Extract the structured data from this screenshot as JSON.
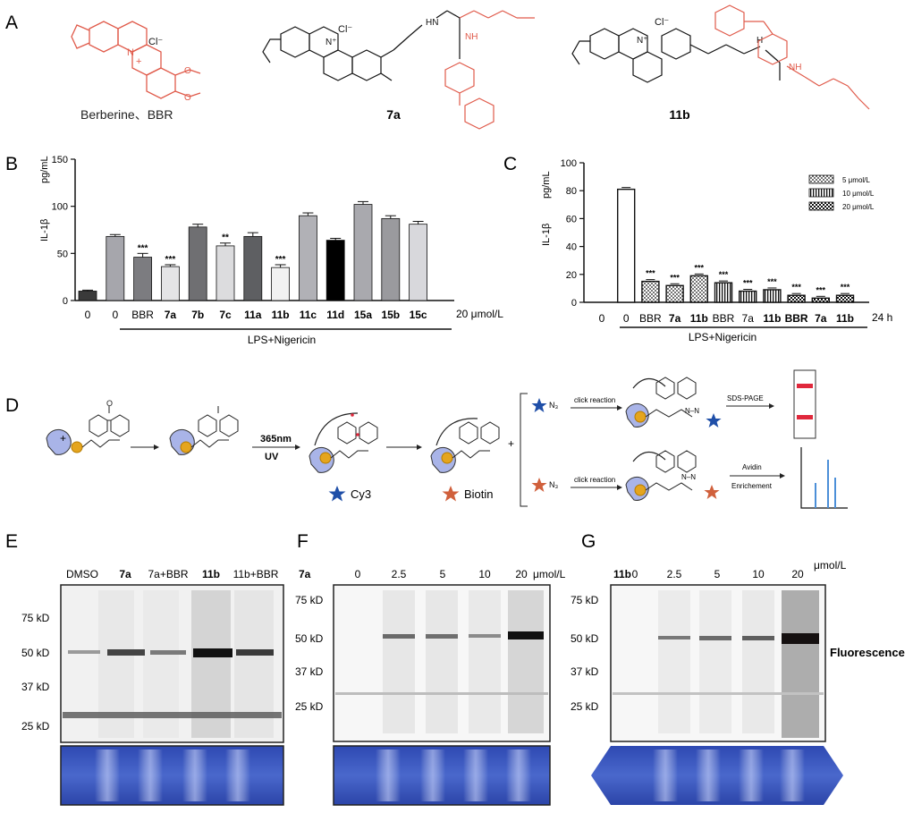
{
  "panels": {
    "A": "A",
    "B": "B",
    "C": "C",
    "D": "D",
    "E": "E",
    "F": "F",
    "G": "G"
  },
  "structures": {
    "berberine_label": "Berberine、BBR",
    "compound_7a": "7a",
    "compound_11b": "11b",
    "counterion": "Cl⁻",
    "methoxy": "O",
    "nh": "NH",
    "hn": "HN",
    "h": "H",
    "n": "N",
    "nplus": "N⁺",
    "plus": "+"
  },
  "colors": {
    "scaffold": "#111111",
    "probe_red": "#e05a4a",
    "protein": "#a9b4e8",
    "ligand": "#e5a51e",
    "cy3": "#1f4fa8",
    "biotin": "#d0603c",
    "gel_band_red": "#e0283c",
    "ms_peak": "#4c8fd8",
    "coomassie": "#3f5fc4"
  },
  "chart_data": [
    {
      "panel": "B",
      "type": "bar",
      "ylabel": "IL-1β",
      "unit": "pg/mL",
      "ylim": [
        0,
        150
      ],
      "yticks": [
        "0",
        "50",
        "100",
        "150"
      ],
      "categories": [
        "0",
        "0",
        "BBR",
        "7a",
        "7b",
        "7c",
        "11a",
        "11b",
        "11c",
        "11d",
        "15a",
        "15b",
        "15c"
      ],
      "bold_categories": [
        "7a",
        "7b",
        "7c",
        "11a",
        "11b",
        "11c",
        "11d",
        "15a",
        "15b",
        "15c"
      ],
      "values": [
        10,
        68,
        46,
        36,
        78,
        58,
        68,
        35,
        90,
        64,
        102,
        87,
        81
      ],
      "errors": [
        1,
        2,
        4,
        2,
        3,
        3,
        4,
        3,
        3,
        2,
        3,
        3,
        3
      ],
      "fills": [
        "#3a3a3a",
        "#a6a6ac",
        "#7c7c80",
        "#e4e4e6",
        "#6f6f72",
        "#dcdcde",
        "#5e5f62",
        "#f2f2f2",
        "#b1b1b6",
        "#000000",
        "#a9a9ae",
        "#9a9a9e",
        "#d8d8dc"
      ],
      "significance": [
        "",
        "",
        "***",
        "***",
        "",
        "**",
        "",
        "***",
        "",
        "",
        "",
        "",
        ""
      ],
      "suffix": "20 μmol/L",
      "treatment": "LPS+Nigericin"
    },
    {
      "panel": "C",
      "type": "bar",
      "ylabel": "IL-1β",
      "unit": "pg/mL",
      "ylim": [
        0,
        100
      ],
      "yticks": [
        "0",
        "20",
        "40",
        "60",
        "80",
        "100"
      ],
      "categories": [
        "0",
        "0",
        "BBR",
        "7a",
        "11b",
        "BBR",
        "7a",
        "11b",
        "BBR",
        "7a",
        "11b"
      ],
      "bold_categories": [
        "7a",
        "11b"
      ],
      "bold_indices": [
        3,
        4,
        7,
        8,
        9,
        10
      ],
      "values": [
        0,
        81,
        15,
        12,
        19,
        14,
        8,
        9,
        5,
        3,
        5
      ],
      "patterns": [
        "open",
        "open",
        "dots",
        "dots",
        "dots",
        "vlines",
        "vlines",
        "vlines",
        "check",
        "check",
        "check"
      ],
      "significance": [
        "",
        "",
        "***",
        "***",
        "***",
        "***",
        "***",
        "***",
        "***",
        "***",
        "***"
      ],
      "suffix": "24 h",
      "treatment": "LPS+Nigericin",
      "series": [
        {
          "name": "5 μmol/L",
          "pattern": "dots"
        },
        {
          "name": "10 μmol/L",
          "pattern": "vlines"
        },
        {
          "name": "20 μmol/L",
          "pattern": "check"
        }
      ],
      "legend_position": "top-right"
    }
  ],
  "schematic": {
    "plus": "+",
    "step_wavelength": "365nm",
    "step_uv": "UV",
    "azide": "N₃",
    "click_reaction": "click reaction",
    "sds_page": "SDS-PAGE",
    "avidin": "Avidin",
    "enrichment": "Enrichement",
    "cy3": "Cy3",
    "biotin": "Biotin",
    "triazole": "N–N",
    "carbonyl": "O"
  },
  "gels": {
    "E": {
      "lanes": [
        "DMSO",
        "7a",
        "7a+BBR",
        "11b",
        "11b+BBR"
      ],
      "markers": [
        "75 kD",
        "50 kD",
        "37 kD",
        "25 kD"
      ]
    },
    "F": {
      "compound": "7a",
      "lanes": [
        "0",
        "2.5",
        "5",
        "10",
        "20"
      ],
      "unit": "μmol/L",
      "markers": [
        "75 kD",
        "50 kD",
        "37 kD",
        "25 kD"
      ]
    },
    "G": {
      "compound": "11b",
      "lanes": [
        "0",
        "2.5",
        "5",
        "10",
        "20"
      ],
      "unit": "μmol/L",
      "markers": [
        "75 kD",
        "50 kD",
        "37 kD",
        "25 kD"
      ],
      "readout": "Fluorescence"
    }
  }
}
